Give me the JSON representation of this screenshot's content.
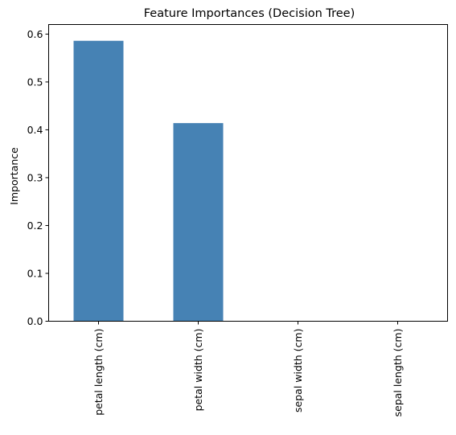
{
  "chart_data": {
    "type": "bar",
    "title": "Feature Importances (Decision Tree)",
    "xlabel": "",
    "ylabel": "Importance",
    "categories": [
      "petal length (cm)",
      "petal width (cm)",
      "sepal width (cm)",
      "sepal length (cm)"
    ],
    "values": [
      0.586,
      0.414,
      0.0,
      0.0
    ],
    "ylim": [
      0,
      0.62
    ],
    "yticks": [
      "0.0",
      "0.1",
      "0.2",
      "0.3",
      "0.4",
      "0.5",
      "0.6"
    ],
    "ytick_values": [
      0,
      0.1,
      0.2,
      0.3,
      0.4,
      0.5,
      0.6
    ],
    "bar_color": "#4682b4",
    "grid": false,
    "legend": "none"
  }
}
